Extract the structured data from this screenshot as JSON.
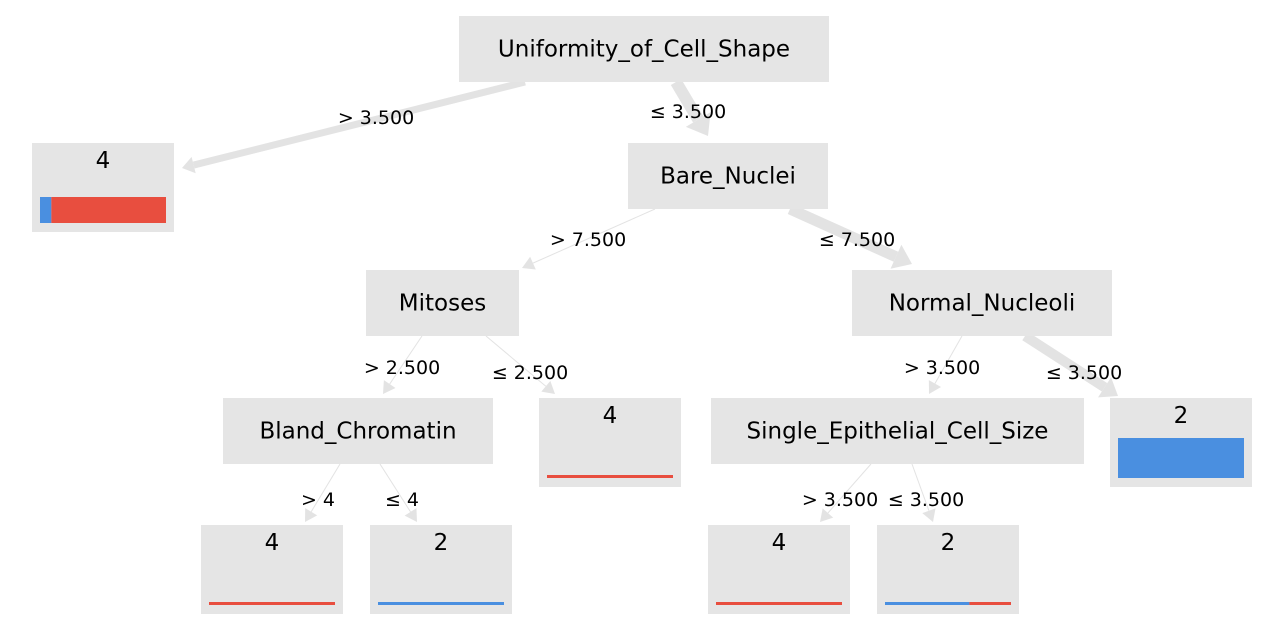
{
  "colors": {
    "class_2": "#4a8fe0",
    "class_4": "#e84e3f",
    "node_fill": "#e5e5e5",
    "edge": "#e3e3e3"
  },
  "nodes": {
    "root": {
      "label": "Uniformity_of_Cell_Shape"
    },
    "bare": {
      "label": "Bare_Nuclei"
    },
    "mit": {
      "label": "Mitoses"
    },
    "normal": {
      "label": "Normal_Nucleoli"
    },
    "bland": {
      "label": "Bland_Chromatin"
    },
    "single": {
      "label": "Single_Epithelial_Cell_Size"
    },
    "leaf_a": {
      "label": "4",
      "dist_class_2": 0.09,
      "dist_class_4": 0.91
    },
    "leaf_b": {
      "label": "4",
      "dist_class_2": 0.0,
      "dist_class_4": 1.0
    },
    "leaf_c": {
      "label": "2",
      "dist_class_2": 1.0,
      "dist_class_4": 0.0
    },
    "leaf_d": {
      "label": "4",
      "dist_class_2": 0.0,
      "dist_class_4": 1.0
    },
    "leaf_e": {
      "label": "2",
      "dist_class_2": 1.0,
      "dist_class_4": 0.0
    },
    "leaf_f": {
      "label": "4",
      "dist_class_2": 0.0,
      "dist_class_4": 1.0
    },
    "leaf_g": {
      "label": "2",
      "dist_class_2": 0.67,
      "dist_class_4": 0.33
    }
  },
  "edges": {
    "root_to_leaf_a": {
      "label": "> 3.500"
    },
    "root_to_bare": {
      "label": "≤ 3.500"
    },
    "bare_to_mit": {
      "label": "> 7.500"
    },
    "bare_to_normal": {
      "label": "≤ 7.500"
    },
    "mit_to_bland": {
      "label": "> 2.500"
    },
    "mit_to_leaf_b": {
      "label": "≤ 2.500"
    },
    "normal_to_single": {
      "label": "> 3.500"
    },
    "normal_to_leaf_c": {
      "label": "≤ 3.500"
    },
    "bland_to_leaf_d": {
      "label": "> 4"
    },
    "bland_to_leaf_e": {
      "label": "≤ 4"
    },
    "single_to_leaf_f": {
      "label": "> 3.500"
    },
    "single_to_leaf_g": {
      "label": "≤ 3.500"
    }
  }
}
